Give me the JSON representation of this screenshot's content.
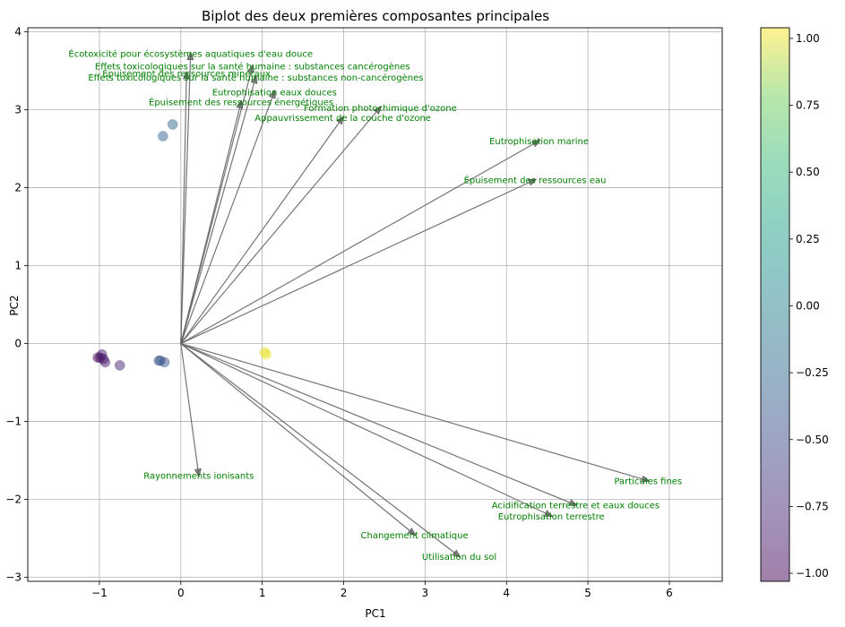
{
  "chart_data": {
    "type": "scatter",
    "title": "Biplot des deux premières composantes principales",
    "xlabel": "PC1",
    "ylabel": "PC2",
    "xlim": [
      -1.88,
      6.65
    ],
    "ylim": [
      -3.05,
      4.05
    ],
    "xticks": [
      -1,
      0,
      1,
      2,
      3,
      4,
      5,
      6
    ],
    "yticks": [
      -3,
      -2,
      -1,
      0,
      1,
      2,
      3,
      4
    ],
    "grid": true,
    "colormap": "viridis",
    "colorbar": {
      "range": [
        -1.03,
        1.04
      ],
      "ticks": [
        "-1.00",
        "-0.75",
        "-0.50",
        "-0.25",
        "0.00",
        "0.25",
        "0.50",
        "0.75",
        "1.00"
      ],
      "tick_values": [
        -1.0,
        -0.75,
        -0.5,
        -0.25,
        0.0,
        0.25,
        0.5,
        0.75,
        1.0
      ]
    },
    "points": [
      {
        "x": -1.02,
        "y": -0.18,
        "c": -1.0
      },
      {
        "x": -0.99,
        "y": -0.18,
        "c": -1.0
      },
      {
        "x": -0.97,
        "y": -0.14,
        "c": -0.85
      },
      {
        "x": -0.95,
        "y": -0.2,
        "c": -0.9
      },
      {
        "x": -0.93,
        "y": -0.24,
        "c": -0.85
      },
      {
        "x": -0.75,
        "y": -0.28,
        "c": -0.8
      },
      {
        "x": -0.27,
        "y": -0.22,
        "c": -0.42
      },
      {
        "x": -0.25,
        "y": -0.22,
        "c": -0.42
      },
      {
        "x": -0.2,
        "y": -0.24,
        "c": -0.4
      },
      {
        "x": -0.22,
        "y": 2.66,
        "c": -0.3
      },
      {
        "x": -0.1,
        "y": 2.81,
        "c": -0.28
      },
      {
        "x": 1.03,
        "y": -0.11,
        "c": 1.0
      },
      {
        "x": 1.05,
        "y": -0.14,
        "c": 1.0
      }
    ],
    "loadings": [
      {
        "label": "Écotoxicité pour écosystèmes aquatiques d'eau douce",
        "x": 0.12,
        "y": 3.72,
        "lx": 0.12,
        "ly": 3.72
      },
      {
        "label": "Effets toxicologiques sur la santé humaine : substances cancérogènes",
        "x": 0.88,
        "y": 3.56,
        "lx": 0.88,
        "ly": 3.56
      },
      {
        "label": "Épuisement des ressources minéraux",
        "x": 0.07,
        "y": 3.47,
        "lx": 0.07,
        "ly": 3.47
      },
      {
        "label": "Effets toxicologiques sur la santé humaine : substances non-cancérogènes",
        "x": 0.92,
        "y": 3.42,
        "lx": 0.92,
        "ly": 3.42
      },
      {
        "label": "Eutrophisation eaux douces",
        "x": 1.15,
        "y": 3.23,
        "lx": 1.15,
        "ly": 3.23
      },
      {
        "label": "Épuisement des ressources énergétiques",
        "x": 0.74,
        "y": 3.1,
        "lx": 0.74,
        "ly": 3.1
      },
      {
        "label": "Formation photochimique d'ozone",
        "x": 2.45,
        "y": 3.03,
        "lx": 2.45,
        "ly": 3.03
      },
      {
        "label": "Appauvrissement de la couche d'ozone",
        "x": 1.99,
        "y": 2.9,
        "lx": 1.99,
        "ly": 2.9
      },
      {
        "label": "Eutrophisation marine",
        "x": 4.4,
        "y": 2.6,
        "lx": 4.4,
        "ly": 2.6
      },
      {
        "label": "Épuisement des ressources eau",
        "x": 4.35,
        "y": 2.1,
        "lx": 4.35,
        "ly": 2.1
      },
      {
        "label": "Rayonnements ionisants",
        "x": 0.22,
        "y": -1.69,
        "lx": 0.22,
        "ly": -1.69
      },
      {
        "label": "Particules fines",
        "x": 5.74,
        "y": -1.76,
        "lx": 5.74,
        "ly": -1.76
      },
      {
        "label": "Acidification terrestre et eaux douces",
        "x": 4.85,
        "y": -2.07,
        "lx": 4.85,
        "ly": -2.07
      },
      {
        "label": "Eutrophisation terrestre",
        "x": 4.55,
        "y": -2.21,
        "lx": 4.55,
        "ly": -2.21
      },
      {
        "label": "Changement climatique",
        "x": 2.87,
        "y": -2.45,
        "lx": 2.87,
        "ly": -2.45
      },
      {
        "label": "Utilisation du sol",
        "x": 3.42,
        "y": -2.73,
        "lx": 3.42,
        "ly": -2.73
      }
    ],
    "colors": {
      "arrow": "#666666",
      "label": "#008000",
      "grid": "#b0b0b0"
    }
  }
}
